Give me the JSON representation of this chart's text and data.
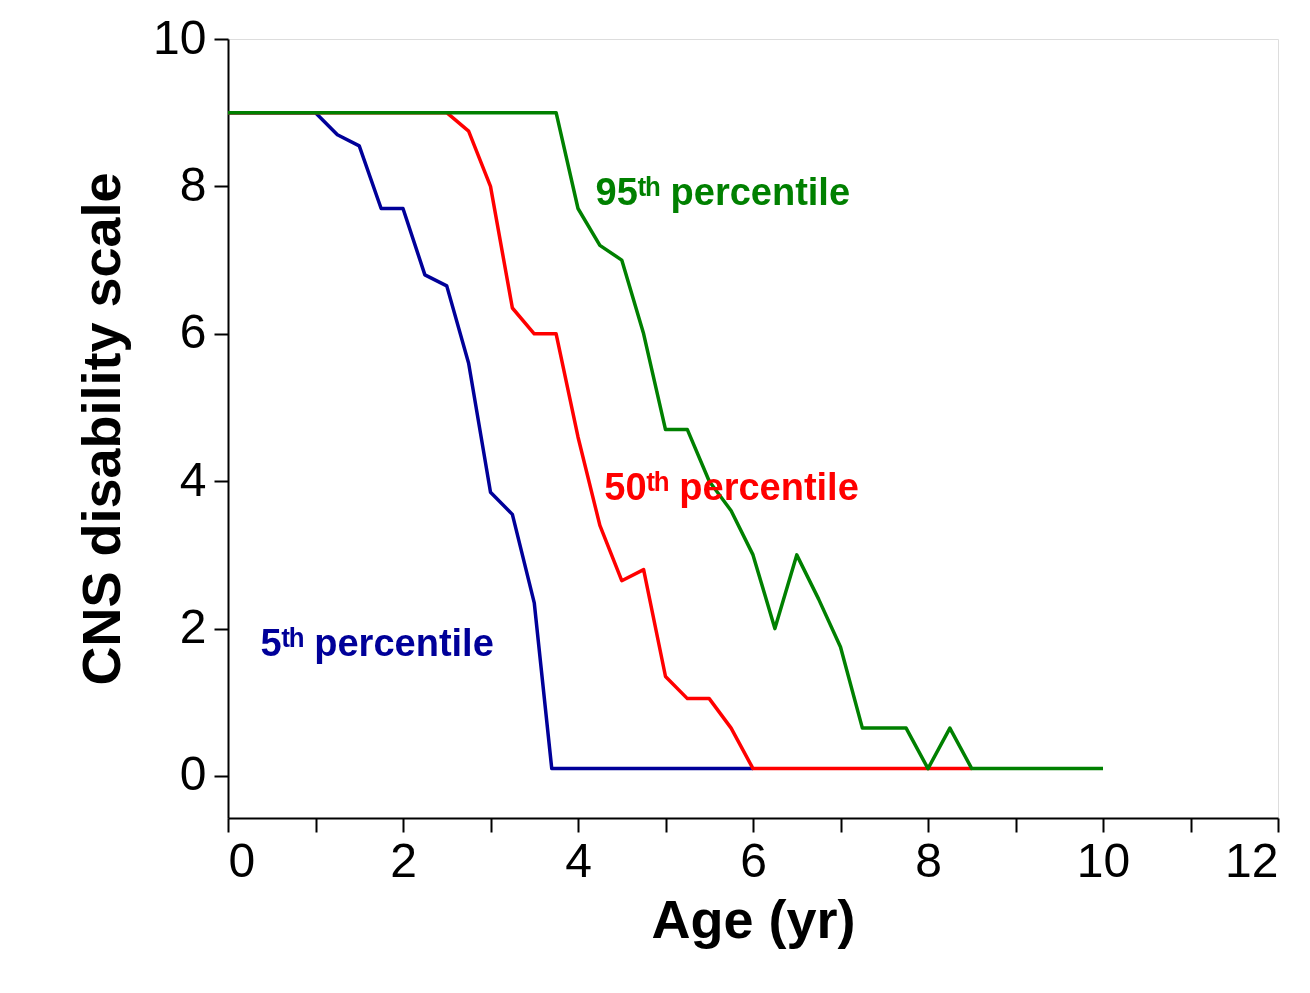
{
  "chart_data": {
    "type": "line",
    "xlabel": "Age (yr)",
    "ylabel": "CNS disability scale",
    "xlim": [
      0,
      12
    ],
    "ylim": [
      -0.57,
      10
    ],
    "xticks": [
      0,
      {
        "value": 1,
        "label": null
      },
      2,
      {
        "value": 3,
        "label": null
      },
      4,
      {
        "value": 5,
        "label": null
      },
      6,
      {
        "value": 7,
        "label": null
      },
      8,
      {
        "value": 9,
        "label": null
      },
      10,
      {
        "value": 11,
        "label": null
      },
      12
    ],
    "yticks": [
      0,
      2,
      4,
      6,
      8,
      10
    ],
    "grid": false,
    "marker": "none",
    "line_style": "solid",
    "series": [
      {
        "name": "5ᵗʰ percentile",
        "color": "#000099",
        "x": [
          0,
          1,
          1.25,
          1.5,
          1.75,
          2,
          2.25,
          2.5,
          2.75,
          3,
          3.25,
          3.5,
          3.7,
          6
        ],
        "values": [
          9,
          9,
          8.7,
          8.55,
          7.7,
          7.7,
          6.8,
          6.65,
          5.6,
          3.85,
          3.55,
          2.35,
          0.1,
          0.1
        ]
      },
      {
        "name": "50ᵗʰ percentile",
        "color": "#ff0000",
        "x": [
          0,
          2.5,
          2.75,
          3,
          3.25,
          3.5,
          3.75,
          4,
          4.25,
          4.5,
          4.75,
          5,
          5.25,
          5.5,
          5.75,
          6,
          8.5
        ],
        "values": [
          9,
          9,
          8.75,
          8,
          6.35,
          6,
          6,
          4.6,
          3.4,
          2.65,
          2.8,
          1.35,
          1.05,
          1.05,
          0.65,
          0.1,
          0.1
        ]
      },
      {
        "name": "95ᵗʰ percentile",
        "color": "#008000",
        "x": [
          0,
          3.75,
          4,
          4.25,
          4.5,
          4.75,
          5,
          5.25,
          5.5,
          5.75,
          6,
          6.25,
          6.5,
          6.75,
          7,
          7.25,
          7.75,
          8,
          8.25,
          8.5,
          10
        ],
        "values": [
          9,
          9,
          7.7,
          7.2,
          7,
          6,
          4.7,
          4.7,
          4,
          3.6,
          3,
          2,
          3,
          2.4,
          1.75,
          0.65,
          0.65,
          0.1,
          0.65,
          0.1,
          0.1
        ]
      }
    ]
  }
}
